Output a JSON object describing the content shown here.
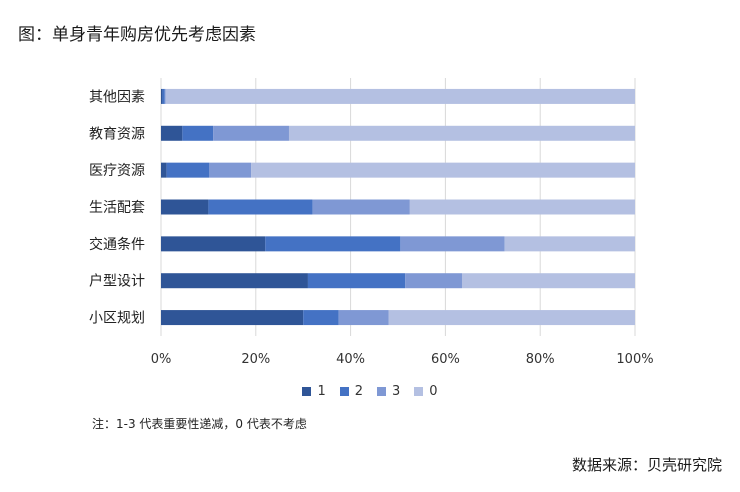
{
  "title": "图：单身青年购房优先考虑因素",
  "note": "注：1-3 代表重要性递减，0 代表不考虑",
  "source": "数据来源：贝壳研究院",
  "chart_data": {
    "type": "bar",
    "orientation": "horizontal",
    "stacked": true,
    "percent_stacked": true,
    "categories": [
      "其他因素",
      "教育资源",
      "医疗资源",
      "生活配套",
      "交通条件",
      "户型设计",
      "小区规划"
    ],
    "series": [
      {
        "name": "1",
        "color": "#2f5597",
        "values": [
          0.3,
          4.5,
          1.2,
          10.0,
          22.0,
          31.0,
          30.0
        ]
      },
      {
        "name": "2",
        "color": "#4472c4",
        "values": [
          0.5,
          6.5,
          9.0,
          22.0,
          28.5,
          20.5,
          7.5
        ]
      },
      {
        "name": "3",
        "color": "#7f98d4",
        "values": [
          0.2,
          16.0,
          8.8,
          20.5,
          22.0,
          12.0,
          10.5
        ]
      },
      {
        "name": "0",
        "color": "#b4c0e2",
        "values": [
          99.0,
          73.0,
          81.0,
          47.5,
          27.5,
          36.5,
          52.0
        ]
      }
    ],
    "xticks": [
      "0%",
      "20%",
      "40%",
      "60%",
      "80%",
      "100%"
    ],
    "xlim": [
      0,
      100
    ],
    "grid": true,
    "legend_position": "bottom"
  }
}
